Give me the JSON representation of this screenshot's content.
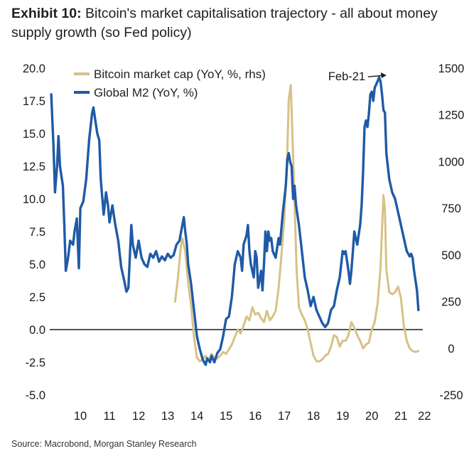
{
  "title": {
    "exhibit": "Exhibit 10:",
    "text": "Bitcoin's market capitalisation trajectory - all about money supply growth (so Fed policy)"
  },
  "source": "Source: Macrobond, Morgan Stanley Research",
  "colors": {
    "m2": "#1f5aa6",
    "btc": "#d8c186",
    "axis": "#1a1a1a"
  },
  "chart_data": {
    "type": "line",
    "title": "Bitcoin's market capitalisation trajectory - all about money supply growth (so Fed policy)",
    "x_tick_labels": [
      "10",
      "11",
      "12",
      "13",
      "14",
      "15",
      "16",
      "17",
      "18",
      "19",
      "20",
      "21",
      "22"
    ],
    "x_ticks": [
      2010,
      2011,
      2012,
      2013,
      2014,
      2015,
      2016,
      2017,
      2018,
      2019,
      2020,
      2021,
      2022
    ],
    "xlim": [
      2009.45,
      2022.25
    ],
    "left_axis": {
      "ylim": [
        -5,
        20
      ],
      "ticks": [
        -5,
        -2.5,
        0,
        2.5,
        5,
        7.5,
        10,
        12.5,
        15,
        17.5,
        20
      ],
      "tick_labels": [
        "-5.0",
        "-2.5",
        "0.0",
        "2.5",
        "5.0",
        "7.5",
        "10.0",
        "12.5",
        "15.0",
        "17.5",
        "20.0"
      ]
    },
    "right_axis": {
      "ylim": [
        -250,
        1500
      ],
      "ticks": [
        -250,
        0,
        250,
        500,
        750,
        1000,
        1250,
        1500
      ],
      "tick_labels": [
        "-250",
        "0",
        "250",
        "500",
        "750",
        "1000",
        "1250",
        "1500"
      ]
    },
    "annotation": {
      "text": "Feb-21",
      "x": 2021.1,
      "y": 19.4
    },
    "series": [
      {
        "name": "Bitcoin market cap (YoY, %, rhs)",
        "axis": "right",
        "color": "#d8c186",
        "points": [
          [
            2013.75,
            250
          ],
          [
            2013.85,
            380
          ],
          [
            2013.95,
            550
          ],
          [
            2014.0,
            590
          ],
          [
            2014.1,
            520
          ],
          [
            2014.2,
            350
          ],
          [
            2014.3,
            230
          ],
          [
            2014.4,
            60
          ],
          [
            2014.5,
            -50
          ],
          [
            2014.6,
            -70
          ],
          [
            2014.7,
            -60
          ],
          [
            2014.8,
            -40
          ],
          [
            2014.9,
            -65
          ],
          [
            2015.0,
            -30
          ],
          [
            2015.1,
            -50
          ],
          [
            2015.2,
            -55
          ],
          [
            2015.3,
            -40
          ],
          [
            2015.4,
            -20
          ],
          [
            2015.5,
            -30
          ],
          [
            2015.6,
            -5
          ],
          [
            2015.7,
            20
          ],
          [
            2015.8,
            60
          ],
          [
            2015.9,
            100
          ],
          [
            2016.0,
            80
          ],
          [
            2016.1,
            120
          ],
          [
            2016.2,
            170
          ],
          [
            2016.3,
            150
          ],
          [
            2016.4,
            220
          ],
          [
            2016.5,
            180
          ],
          [
            2016.6,
            190
          ],
          [
            2016.7,
            160
          ],
          [
            2016.8,
            140
          ],
          [
            2016.9,
            200
          ],
          [
            2017.0,
            150
          ],
          [
            2017.1,
            170
          ],
          [
            2017.2,
            200
          ],
          [
            2017.3,
            320
          ],
          [
            2017.4,
            500
          ],
          [
            2017.5,
            700
          ],
          [
            2017.6,
            1050
          ],
          [
            2017.65,
            1330
          ],
          [
            2017.72,
            1410
          ],
          [
            2017.78,
            1120
          ],
          [
            2017.85,
            780
          ],
          [
            2017.92,
            420
          ],
          [
            2018.0,
            220
          ],
          [
            2018.1,
            180
          ],
          [
            2018.2,
            150
          ],
          [
            2018.3,
            100
          ],
          [
            2018.4,
            30
          ],
          [
            2018.5,
            -40
          ],
          [
            2018.6,
            -70
          ],
          [
            2018.7,
            -70
          ],
          [
            2018.8,
            -60
          ],
          [
            2018.9,
            -40
          ],
          [
            2019.0,
            -30
          ],
          [
            2019.1,
            10
          ],
          [
            2019.2,
            70
          ],
          [
            2019.3,
            60
          ],
          [
            2019.4,
            10
          ],
          [
            2019.5,
            40
          ],
          [
            2019.6,
            40
          ],
          [
            2019.7,
            70
          ],
          [
            2019.8,
            140
          ],
          [
            2019.9,
            110
          ],
          [
            2020.0,
            70
          ],
          [
            2020.1,
            40
          ],
          [
            2020.2,
            0
          ],
          [
            2020.3,
            20
          ],
          [
            2020.4,
            30
          ],
          [
            2020.5,
            100
          ],
          [
            2020.6,
            140
          ],
          [
            2020.7,
            240
          ],
          [
            2020.8,
            430
          ],
          [
            2020.85,
            640
          ],
          [
            2020.9,
            820
          ],
          [
            2020.95,
            740
          ],
          [
            2021.0,
            420
          ],
          [
            2021.1,
            300
          ],
          [
            2021.2,
            290
          ],
          [
            2021.3,
            300
          ],
          [
            2021.4,
            330
          ],
          [
            2021.5,
            270
          ],
          [
            2021.6,
            120
          ],
          [
            2021.7,
            40
          ],
          [
            2021.8,
            0
          ],
          [
            2021.9,
            -15
          ],
          [
            2022.0,
            -20
          ],
          [
            2022.1,
            -15
          ]
        ]
      },
      {
        "name": "Global M2 (YoY, %)",
        "axis": "left",
        "color": "#1f5aa6",
        "points": [
          [
            2009.5,
            18.0
          ],
          [
            2009.58,
            14.0
          ],
          [
            2009.63,
            10.5
          ],
          [
            2009.7,
            12.5
          ],
          [
            2009.75,
            14.8
          ],
          [
            2009.8,
            12.5
          ],
          [
            2009.9,
            11.0
          ],
          [
            2009.95,
            8.0
          ],
          [
            2010.0,
            4.5
          ],
          [
            2010.08,
            5.5
          ],
          [
            2010.15,
            6.8
          ],
          [
            2010.25,
            6.5
          ],
          [
            2010.3,
            7.5
          ],
          [
            2010.38,
            8.5
          ],
          [
            2010.45,
            4.7
          ],
          [
            2010.5,
            9.3
          ],
          [
            2010.6,
            9.8
          ],
          [
            2010.7,
            11.5
          ],
          [
            2010.8,
            14.5
          ],
          [
            2010.9,
            16.5
          ],
          [
            2010.95,
            17.0
          ],
          [
            2011.0,
            16.2
          ],
          [
            2011.08,
            15.0
          ],
          [
            2011.15,
            14.5
          ],
          [
            2011.2,
            11.5
          ],
          [
            2011.3,
            8.8
          ],
          [
            2011.38,
            10.5
          ],
          [
            2011.45,
            9.5
          ],
          [
            2011.5,
            8.2
          ],
          [
            2011.6,
            9.5
          ],
          [
            2011.7,
            8.0
          ],
          [
            2011.8,
            6.8
          ],
          [
            2011.9,
            4.8
          ],
          [
            2012.0,
            3.8
          ],
          [
            2012.08,
            2.9
          ],
          [
            2012.15,
            3.2
          ],
          [
            2012.25,
            8.0
          ],
          [
            2012.3,
            6.5
          ],
          [
            2012.4,
            5.5
          ],
          [
            2012.5,
            6.8
          ],
          [
            2012.6,
            5.5
          ],
          [
            2012.7,
            5.0
          ],
          [
            2012.8,
            4.8
          ],
          [
            2012.9,
            5.8
          ],
          [
            2013.0,
            5.5
          ],
          [
            2013.1,
            6.0
          ],
          [
            2013.2,
            5.2
          ],
          [
            2013.3,
            5.6
          ],
          [
            2013.4,
            5.3
          ],
          [
            2013.5,
            5.8
          ],
          [
            2013.6,
            5.5
          ],
          [
            2013.7,
            5.7
          ],
          [
            2013.8,
            6.5
          ],
          [
            2013.9,
            6.8
          ],
          [
            2014.0,
            8.0
          ],
          [
            2014.05,
            8.6
          ],
          [
            2014.1,
            7.5
          ],
          [
            2014.15,
            6.6
          ],
          [
            2014.2,
            5.0
          ],
          [
            2014.3,
            3.5
          ],
          [
            2014.4,
            1.5
          ],
          [
            2014.5,
            -0.5
          ],
          [
            2014.6,
            -1.5
          ],
          [
            2014.7,
            -2.3
          ],
          [
            2014.8,
            -2.7
          ],
          [
            2014.85,
            -2.2
          ],
          [
            2014.95,
            -2.5
          ],
          [
            2015.0,
            -2.0
          ],
          [
            2015.1,
            -2.5
          ],
          [
            2015.2,
            -1.8
          ],
          [
            2015.3,
            -1.5
          ],
          [
            2015.4,
            -0.5
          ],
          [
            2015.5,
            0.8
          ],
          [
            2015.6,
            1.0
          ],
          [
            2015.7,
            2.5
          ],
          [
            2015.8,
            5.0
          ],
          [
            2015.9,
            6.0
          ],
          [
            2016.0,
            5.5
          ],
          [
            2016.05,
            4.5
          ],
          [
            2016.1,
            6.5
          ],
          [
            2016.2,
            7.2
          ],
          [
            2016.25,
            8.0
          ],
          [
            2016.3,
            6.0
          ],
          [
            2016.35,
            5.0
          ],
          [
            2016.45,
            4.0
          ],
          [
            2016.5,
            6.0
          ],
          [
            2016.55,
            5.5
          ],
          [
            2016.6,
            3.2
          ],
          [
            2016.7,
            4.5
          ],
          [
            2016.75,
            3.0
          ],
          [
            2016.8,
            5.0
          ],
          [
            2016.85,
            7.5
          ],
          [
            2016.9,
            6.0
          ],
          [
            2016.95,
            7.5
          ],
          [
            2017.0,
            6.8
          ],
          [
            2017.05,
            7.0
          ],
          [
            2017.1,
            6.0
          ],
          [
            2017.2,
            5.5
          ],
          [
            2017.3,
            7.0
          ],
          [
            2017.35,
            6.5
          ],
          [
            2017.45,
            9.0
          ],
          [
            2017.55,
            11.0
          ],
          [
            2017.6,
            13.0
          ],
          [
            2017.65,
            13.5
          ],
          [
            2017.7,
            12.8
          ],
          [
            2017.75,
            12.5
          ],
          [
            2017.8,
            10.0
          ],
          [
            2017.85,
            11.0
          ],
          [
            2017.9,
            9.5
          ],
          [
            2018.0,
            8.0
          ],
          [
            2018.1,
            6.0
          ],
          [
            2018.2,
            4.0
          ],
          [
            2018.3,
            3.0
          ],
          [
            2018.4,
            1.8
          ],
          [
            2018.5,
            2.5
          ],
          [
            2018.6,
            1.5
          ],
          [
            2018.7,
            1.0
          ],
          [
            2018.8,
            0.5
          ],
          [
            2018.9,
            0.2
          ],
          [
            2019.0,
            0.5
          ],
          [
            2019.1,
            1.5
          ],
          [
            2019.2,
            1.8
          ],
          [
            2019.3,
            3.0
          ],
          [
            2019.4,
            4.0
          ],
          [
            2019.5,
            6.0
          ],
          [
            2019.55,
            5.8
          ],
          [
            2019.6,
            6.0
          ],
          [
            2019.7,
            4.5
          ],
          [
            2019.75,
            3.5
          ],
          [
            2019.8,
            4.5
          ],
          [
            2019.85,
            6.0
          ],
          [
            2019.9,
            7.5
          ],
          [
            2020.0,
            6.5
          ],
          [
            2020.1,
            8.0
          ],
          [
            2020.15,
            9.5
          ],
          [
            2020.2,
            12.0
          ],
          [
            2020.25,
            15.5
          ],
          [
            2020.3,
            16.0
          ],
          [
            2020.35,
            15.5
          ],
          [
            2020.4,
            16.5
          ],
          [
            2020.45,
            18.0
          ],
          [
            2020.5,
            18.2
          ],
          [
            2020.55,
            17.5
          ],
          [
            2020.6,
            18.5
          ],
          [
            2020.7,
            19.0
          ],
          [
            2020.75,
            19.3
          ],
          [
            2020.8,
            19.0
          ],
          [
            2020.85,
            18.0
          ],
          [
            2020.9,
            16.8
          ],
          [
            2020.95,
            16.6
          ],
          [
            2021.0,
            13.5
          ],
          [
            2021.1,
            11.5
          ],
          [
            2021.2,
            10.5
          ],
          [
            2021.3,
            10.0
          ],
          [
            2021.4,
            9.0
          ],
          [
            2021.5,
            8.0
          ],
          [
            2021.6,
            7.0
          ],
          [
            2021.7,
            6.0
          ],
          [
            2021.75,
            5.8
          ],
          [
            2021.8,
            5.6
          ],
          [
            2021.85,
            5.8
          ],
          [
            2021.9,
            5.5
          ],
          [
            2021.95,
            4.5
          ],
          [
            2022.05,
            3.0
          ],
          [
            2022.1,
            1.5
          ]
        ]
      }
    ]
  }
}
